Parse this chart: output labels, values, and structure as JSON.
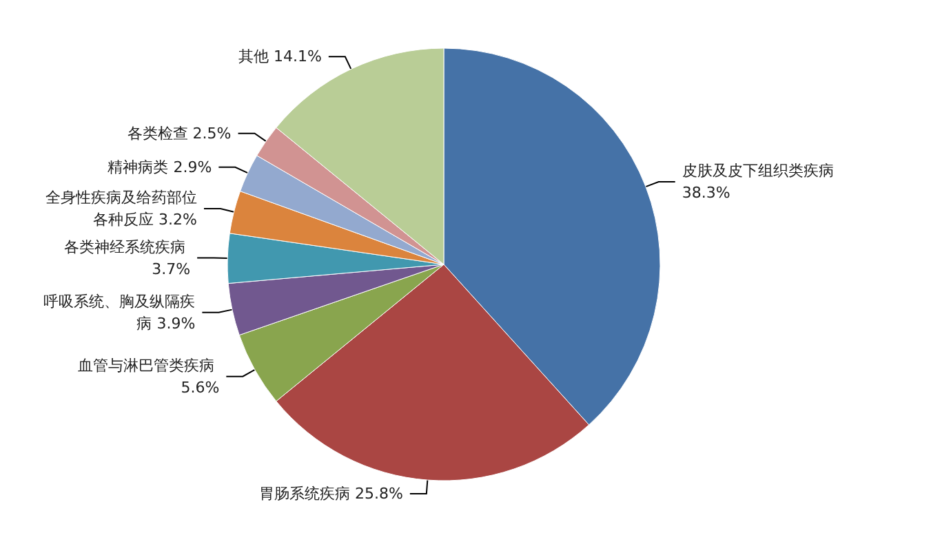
{
  "chart_data": {
    "type": "pie",
    "categories": [
      "皮肤及皮下组织类疾病",
      "胃肠系统疾病",
      "血管与淋巴管类疾病",
      "呼吸系统、胸及纵隔疾病",
      "各类神经系统疾病",
      "全身性疾病及给药部位各种反应",
      "精神病类",
      "各类检查",
      "其他"
    ],
    "values": [
      38.3,
      25.8,
      5.6,
      3.9,
      3.7,
      3.2,
      2.9,
      2.5,
      14.1
    ],
    "colors": [
      "#4572a7",
      "#aa4643",
      "#89a54e",
      "#71588f",
      "#4198af",
      "#db843d",
      "#93a9cf",
      "#d19392",
      "#b9cd96"
    ],
    "value_labels": [
      "38.3%",
      "25.8%",
      "5.6%",
      "3.9%",
      "3.7%",
      "3.2%",
      "2.9%",
      "2.5%",
      "14.1%"
    ],
    "legend": false
  }
}
